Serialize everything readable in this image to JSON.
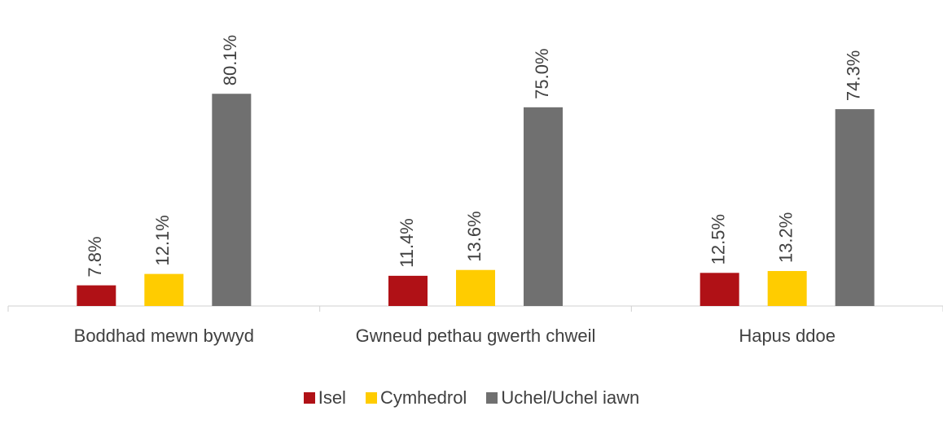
{
  "chart_data": {
    "type": "bar",
    "categories": [
      "Boddhad mewn bywyd",
      "Gwneud pethau gwerth chweil",
      "Hapus ddoe"
    ],
    "series": [
      {
        "name": "Isel",
        "color": "#b01116",
        "values": [
          7.8,
          11.4,
          12.5
        ],
        "value_labels": [
          "7.8%",
          "11.4%",
          "12.5%"
        ]
      },
      {
        "name": "Cymhedrol",
        "color": "#ffcc00",
        "values": [
          12.1,
          13.6,
          13.2
        ],
        "value_labels": [
          "12.1%",
          "13.6%",
          "13.2%"
        ]
      },
      {
        "name": "Uchel/Uchel iawn",
        "color": "#707070",
        "values": [
          80.1,
          75.0,
          74.3
        ],
        "value_labels": [
          "80.1%",
          "75.0%",
          "74.3%"
        ]
      }
    ],
    "ylim": [
      0,
      90
    ]
  }
}
